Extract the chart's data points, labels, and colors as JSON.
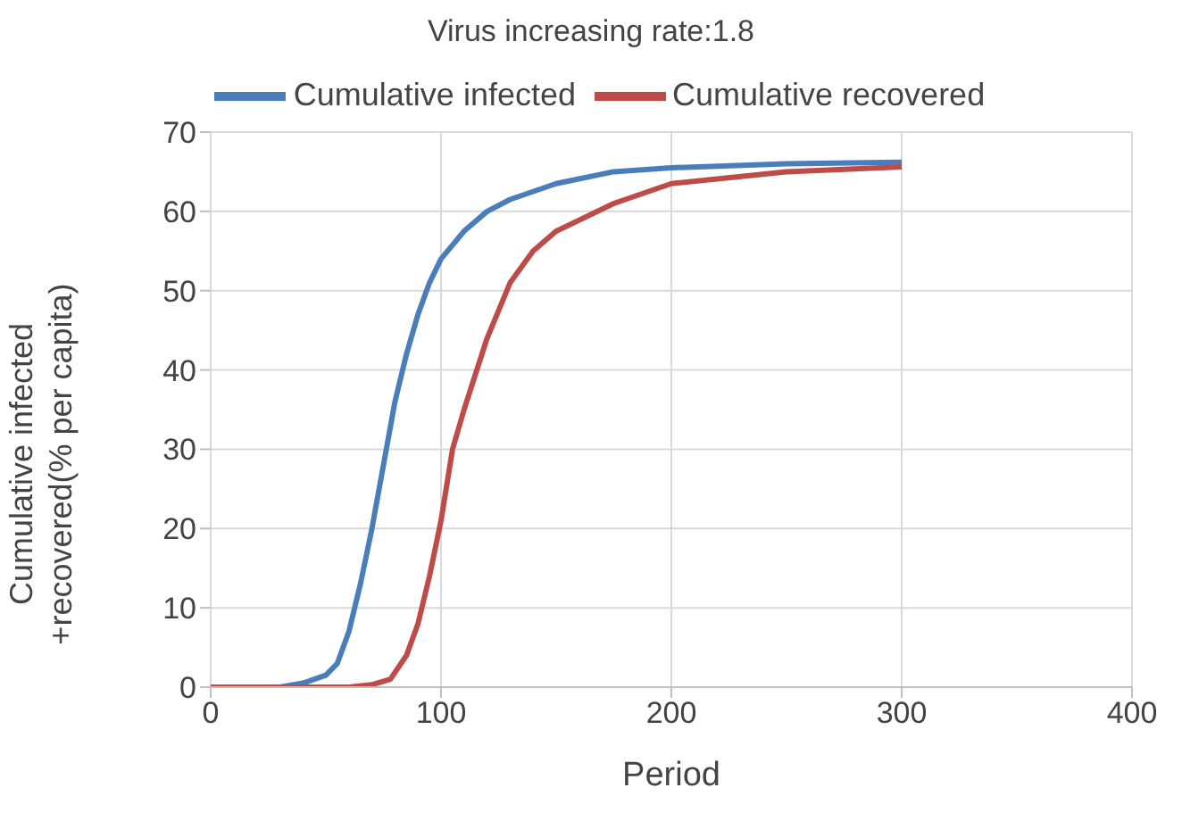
{
  "chart_data": {
    "type": "line",
    "title": "Virus increasing rate:1.8",
    "xlabel": "Period",
    "ylabel": "Cumulative infected +recovered(% per capita)",
    "xlim": [
      0,
      400
    ],
    "xticks": [
      0,
      100,
      200,
      300,
      400
    ],
    "ylim": [
      0,
      70
    ],
    "yticks": [
      0,
      10,
      20,
      30,
      40,
      50,
      60,
      70
    ],
    "grid": true,
    "legend": "top",
    "marker": "none",
    "line_style": "solid",
    "series": [
      {
        "name": "Cumulative infected",
        "color": "#4a7ebb",
        "x": [
          0,
          30,
          40,
          50,
          55,
          60,
          65,
          70,
          75,
          80,
          85,
          90,
          95,
          100,
          110,
          120,
          130,
          150,
          175,
          200,
          250,
          300
        ],
        "values": [
          0,
          0,
          0.5,
          1.5,
          3,
          7,
          13,
          20,
          28,
          36,
          42,
          47,
          51,
          54,
          57.5,
          60,
          61.5,
          63.5,
          65,
          65.5,
          66,
          66.2
        ]
      },
      {
        "name": "Cumulative recovered",
        "color": "#be4b48",
        "x": [
          0,
          60,
          70,
          78,
          85,
          90,
          95,
          100,
          105,
          110,
          120,
          130,
          140,
          150,
          175,
          200,
          250,
          300
        ],
        "values": [
          0,
          0,
          0.3,
          1,
          4,
          8,
          14,
          21,
          30,
          35,
          44,
          51,
          55,
          57.5,
          61,
          63.5,
          65,
          65.6
        ]
      }
    ]
  }
}
